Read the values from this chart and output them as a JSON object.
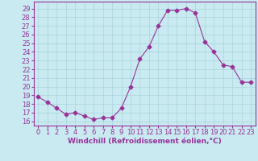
{
  "x": [
    0,
    1,
    2,
    3,
    4,
    5,
    6,
    7,
    8,
    9,
    10,
    11,
    12,
    13,
    14,
    15,
    16,
    17,
    18,
    19,
    20,
    21,
    22,
    23
  ],
  "y": [
    18.8,
    18.2,
    17.5,
    16.8,
    17.0,
    16.6,
    16.2,
    16.4,
    16.4,
    17.5,
    20.0,
    23.2,
    24.6,
    27.0,
    28.8,
    28.8,
    29.0,
    28.5,
    25.2,
    24.0,
    22.5,
    22.3,
    20.5,
    20.5
  ],
  "line_color": "#993399",
  "marker": "D",
  "marker_size": 2.5,
  "line_width": 0.8,
  "xlabel": "Windchill (Refroidissement éolien,°C)",
  "xlabel_fontsize": 6.5,
  "ylim": [
    15.5,
    29.8
  ],
  "yticks": [
    16,
    17,
    18,
    19,
    20,
    21,
    22,
    23,
    24,
    25,
    26,
    27,
    28,
    29
  ],
  "xticks": [
    0,
    1,
    2,
    3,
    4,
    5,
    6,
    7,
    8,
    9,
    10,
    11,
    12,
    13,
    14,
    15,
    16,
    17,
    18,
    19,
    20,
    21,
    22,
    23
  ],
  "background_color": "#c8eaf0",
  "grid_color": "#aad4dc",
  "tick_color": "#993399",
  "tick_fontsize": 6,
  "spine_color": "#993399"
}
